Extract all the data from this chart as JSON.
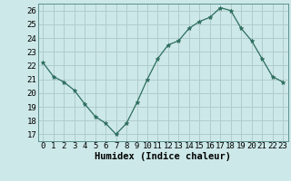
{
  "x": [
    0,
    1,
    2,
    3,
    4,
    5,
    6,
    7,
    8,
    9,
    10,
    11,
    12,
    13,
    14,
    15,
    16,
    17,
    18,
    19,
    20,
    21,
    22,
    23
  ],
  "y": [
    22.2,
    21.2,
    20.8,
    20.2,
    19.2,
    18.3,
    17.8,
    17.0,
    17.8,
    19.3,
    21.0,
    22.5,
    23.5,
    23.8,
    24.7,
    25.2,
    25.5,
    26.2,
    26.0,
    24.7,
    23.8,
    22.5,
    21.2,
    20.8
  ],
  "line_color": "#2d6e5e",
  "marker": "*",
  "marker_size": 3.5,
  "bg_color": "#cde8e8",
  "grid_color": "#b0cccc",
  "xlabel": "Humidex (Indice chaleur)",
  "xlim": [
    -0.5,
    23.5
  ],
  "ylim": [
    16.5,
    26.5
  ],
  "yticks": [
    17,
    18,
    19,
    20,
    21,
    22,
    23,
    24,
    25,
    26
  ],
  "xticks": [
    0,
    1,
    2,
    3,
    4,
    5,
    6,
    7,
    8,
    9,
    10,
    11,
    12,
    13,
    14,
    15,
    16,
    17,
    18,
    19,
    20,
    21,
    22,
    23
  ],
  "tick_font_size": 6.5,
  "xlabel_font_size": 7.5
}
